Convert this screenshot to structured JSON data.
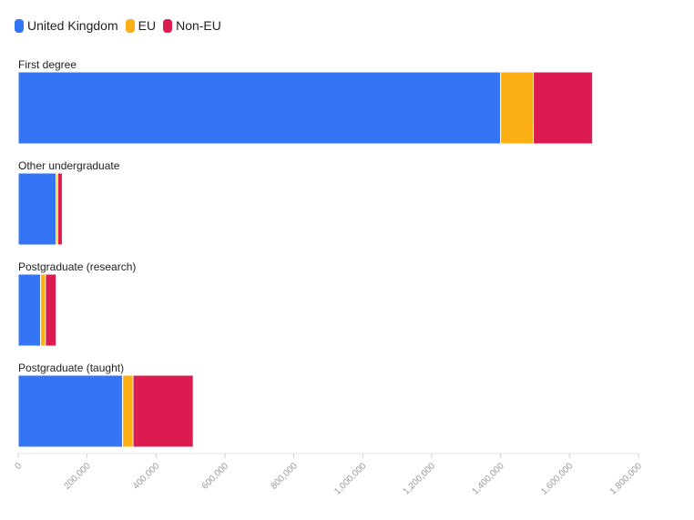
{
  "chart_data": {
    "type": "bar",
    "orientation": "horizontal",
    "stacked": true,
    "categories": [
      "First degree",
      "Other undergraduate",
      "Postgraduate (research)",
      "Postgraduate (taught)"
    ],
    "series": [
      {
        "name": "United Kingdom",
        "color": "#3375f5",
        "values": [
          1400000,
          110000,
          65000,
          303000
        ]
      },
      {
        "name": "EU",
        "color": "#fcb016",
        "values": [
          95000,
          5000,
          14000,
          30000
        ]
      },
      {
        "name": "Non-EU",
        "color": "#dc1c50",
        "values": [
          172000,
          13000,
          31000,
          175000
        ]
      }
    ],
    "xlim": [
      0,
      1800000
    ],
    "xticks": [
      0,
      200000,
      400000,
      600000,
      800000,
      1000000,
      1200000,
      1400000,
      1600000,
      1800000
    ],
    "xtick_labels": [
      "0",
      "200,000",
      "400,000",
      "600,000",
      "800,000",
      "1,000,000",
      "1,200,000",
      "1,400,000",
      "1,600,000",
      "1,800,000"
    ],
    "grid": false,
    "legend_position": "top-left"
  }
}
